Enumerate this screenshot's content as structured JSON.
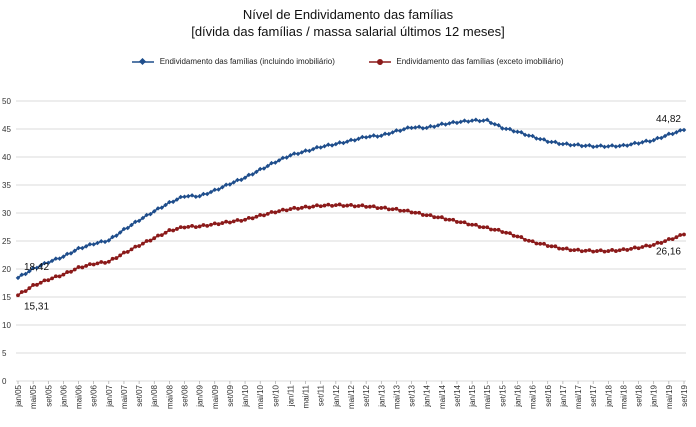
{
  "chart_data": {
    "type": "line",
    "title": "Nível de Endividamento das famílias",
    "subtitle": "[dívida das famílias / massa salarial últimos 12 meses]",
    "xlabel": "",
    "ylabel": "",
    "ylim": [
      0,
      50
    ],
    "yticks": [
      0,
      5,
      10,
      15,
      20,
      25,
      30,
      35,
      40,
      45,
      50
    ],
    "grid": true,
    "legend": "top-center",
    "x_tick_labels": [
      "jan/05",
      "mai/05",
      "set/05",
      "jan/06",
      "mai/06",
      "set/06",
      "jan/07",
      "mai/07",
      "set/07",
      "jan/08",
      "mai/08",
      "set/08",
      "jan/09",
      "mai/09",
      "set/09",
      "jan/10",
      "mai/10",
      "set/10",
      "jan/11",
      "mai/11",
      "set/11",
      "jan/12",
      "mai/12",
      "set/12",
      "jan/13",
      "mai/13",
      "set/13",
      "jan/14",
      "mai/14",
      "set/14",
      "jan/15",
      "mai/15",
      "set/15",
      "jan/16",
      "mai/16",
      "set/16",
      "jan/17",
      "mai/17",
      "set/17",
      "jan/18",
      "mai/18",
      "set/18",
      "jan/19",
      "mai/19",
      "set/19"
    ],
    "series": [
      {
        "name": "Endividamento das famílias (incluindo imobiliário)",
        "color": "#1f4e8c",
        "marker": "diamond",
        "anchors": [
          [
            "jan/05",
            18.42
          ],
          [
            "mai/05",
            20.0
          ],
          [
            "set/05",
            21.2
          ],
          [
            "jan/06",
            22.2
          ],
          [
            "mai/06",
            23.6
          ],
          [
            "set/06",
            24.5
          ],
          [
            "jan/07",
            25.1
          ],
          [
            "mai/07",
            27.0
          ],
          [
            "set/07",
            28.7
          ],
          [
            "jan/08",
            30.3
          ],
          [
            "mai/08",
            31.8
          ],
          [
            "set/08",
            33.0
          ],
          [
            "jan/09",
            33.0
          ],
          [
            "mai/09",
            34.0
          ],
          [
            "set/09",
            35.2
          ],
          [
            "jan/10",
            36.3
          ],
          [
            "mai/10",
            37.7
          ],
          [
            "set/10",
            39.1
          ],
          [
            "jan/11",
            40.3
          ],
          [
            "mai/11",
            41.0
          ],
          [
            "set/11",
            41.8
          ],
          [
            "jan/12",
            42.3
          ],
          [
            "mai/12",
            42.9
          ],
          [
            "set/12",
            43.6
          ],
          [
            "jan/13",
            43.8
          ],
          [
            "mai/13",
            44.6
          ],
          [
            "set/13",
            45.3
          ],
          [
            "jan/14",
            45.2
          ],
          [
            "mai/14",
            45.8
          ],
          [
            "set/14",
            46.2
          ],
          [
            "jan/15",
            46.5
          ],
          [
            "mai/15",
            46.5
          ],
          [
            "set/15",
            45.2
          ],
          [
            "jan/16",
            44.5
          ],
          [
            "mai/16",
            43.6
          ],
          [
            "set/16",
            42.8
          ],
          [
            "jan/17",
            42.3
          ],
          [
            "mai/17",
            42.1
          ],
          [
            "set/17",
            41.9
          ],
          [
            "jan/18",
            41.9
          ],
          [
            "mai/18",
            42.0
          ],
          [
            "set/18",
            42.5
          ],
          [
            "jan/19",
            43.0
          ],
          [
            "mai/19",
            44.0
          ],
          [
            "set/19",
            44.82
          ]
        ],
        "first_label": "18,42",
        "last_label": "44,82"
      },
      {
        "name": "Endividamento das famílias (exceto imobiliário)",
        "color": "#8b1a1a",
        "marker": "circle",
        "anchors": [
          [
            "jan/05",
            15.31
          ],
          [
            "mai/05",
            17.0
          ],
          [
            "set/05",
            18.1
          ],
          [
            "jan/06",
            19.0
          ],
          [
            "mai/06",
            20.2
          ],
          [
            "set/06",
            20.9
          ],
          [
            "jan/07",
            21.3
          ],
          [
            "mai/07",
            22.8
          ],
          [
            "set/07",
            24.2
          ],
          [
            "jan/08",
            25.5
          ],
          [
            "mai/08",
            26.8
          ],
          [
            "set/08",
            27.5
          ],
          [
            "jan/09",
            27.6
          ],
          [
            "mai/09",
            28.0
          ],
          [
            "set/09",
            28.4
          ],
          [
            "jan/10",
            28.8
          ],
          [
            "mai/10",
            29.5
          ],
          [
            "set/10",
            30.2
          ],
          [
            "jan/11",
            30.7
          ],
          [
            "mai/11",
            31.0
          ],
          [
            "set/11",
            31.3
          ],
          [
            "jan/12",
            31.4
          ],
          [
            "mai/12",
            31.3
          ],
          [
            "set/12",
            31.2
          ],
          [
            "jan/13",
            30.9
          ],
          [
            "mai/13",
            30.6
          ],
          [
            "set/13",
            30.2
          ],
          [
            "jan/14",
            29.6
          ],
          [
            "mai/14",
            29.1
          ],
          [
            "set/14",
            28.5
          ],
          [
            "jan/15",
            27.9
          ],
          [
            "mai/15",
            27.3
          ],
          [
            "set/15",
            26.7
          ],
          [
            "jan/16",
            25.8
          ],
          [
            "mai/16",
            24.8
          ],
          [
            "set/16",
            24.2
          ],
          [
            "jan/17",
            23.6
          ],
          [
            "mai/17",
            23.3
          ],
          [
            "set/17",
            23.2
          ],
          [
            "jan/18",
            23.2
          ],
          [
            "mai/18",
            23.4
          ],
          [
            "set/18",
            23.8
          ],
          [
            "jan/19",
            24.3
          ],
          [
            "mai/19",
            25.2
          ],
          [
            "set/19",
            26.16
          ]
        ],
        "first_label": "15,31",
        "last_label": "26,16"
      }
    ]
  }
}
